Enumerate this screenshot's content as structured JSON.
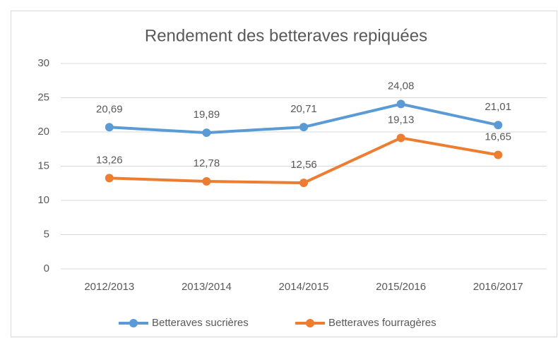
{
  "chart_data": {
    "type": "line",
    "title": "Rendement des betteraves repiquées",
    "categories": [
      "2012/2013",
      "2013/2014",
      "2014/2015",
      "2015/2016",
      "2016/2017"
    ],
    "series": [
      {
        "name": "Betteraves sucrières",
        "color": "#5b9bd5",
        "values": [
          20.69,
          19.89,
          20.71,
          24.08,
          21.01
        ],
        "value_labels": [
          "20,69",
          "19,89",
          "20,71",
          "24,08",
          "21,01"
        ]
      },
      {
        "name": "Betteraves fourragères",
        "color": "#ed7d31",
        "values": [
          13.26,
          12.78,
          12.56,
          19.13,
          16.65
        ],
        "value_labels": [
          "13,26",
          "12,78",
          "12,56",
          "19,13",
          "16,65"
        ]
      }
    ],
    "ylim": [
      0,
      30
    ],
    "yticks": [
      0,
      5,
      10,
      15,
      20,
      25,
      30
    ],
    "grid": true,
    "legend": "bottom"
  }
}
